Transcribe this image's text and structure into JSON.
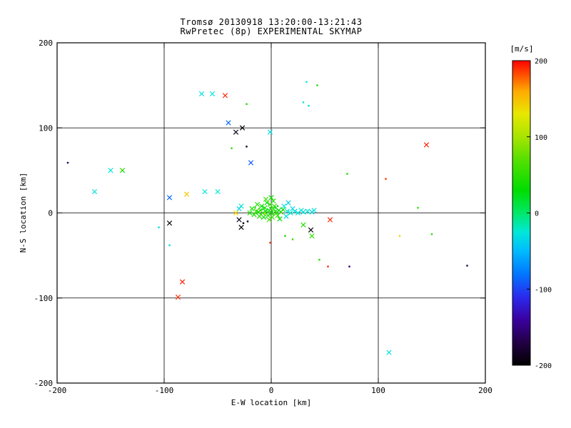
{
  "title": {
    "line1": "Tromsø 20130918 13:20:00-13:21:43",
    "line2": "RwPretec (8p) EXPERIMENTAL SKYMAP"
  },
  "chart_data": {
    "type": "scatter",
    "title": "Tromsø 20130918 13:20:00-13:21:43",
    "subtitle": "RwPretec (8p) EXPERIMENTAL SKYMAP",
    "xlabel": "E-W location [km]",
    "ylabel": "N-S location [km]",
    "xlim": [
      -200,
      200
    ],
    "ylim": [
      -200,
      200
    ],
    "x_ticks": [
      -200,
      -100,
      0,
      100,
      200
    ],
    "y_ticks": [
      200,
      100,
      0,
      -100,
      -200
    ],
    "grid": true,
    "colorbar": {
      "label": "[m/s]",
      "min": -200,
      "max": 200,
      "ticks": [
        200,
        100,
        0,
        -100,
        -200
      ],
      "stops": [
        [
          -200,
          "#000000"
        ],
        [
          -170,
          "#220044"
        ],
        [
          -140,
          "#3b00a0"
        ],
        [
          -110,
          "#2a2aee"
        ],
        [
          -80,
          "#0077ff"
        ],
        [
          -50,
          "#00bbff"
        ],
        [
          -25,
          "#00e8d8"
        ],
        [
          0,
          "#00e868"
        ],
        [
          30,
          "#00dd00"
        ],
        [
          70,
          "#55e000"
        ],
        [
          100,
          "#a8e400"
        ],
        [
          130,
          "#e8e800"
        ],
        [
          160,
          "#ffaa00"
        ],
        [
          180,
          "#ff5500"
        ],
        [
          200,
          "#ff0000"
        ]
      ]
    },
    "points_format": [
      "x_km",
      "y_km",
      "velocity_mps",
      "marker(x=cross,d=dot)"
    ],
    "points": [
      [
        -2,
        3,
        40,
        "x"
      ],
      [
        0,
        0,
        35,
        "x"
      ],
      [
        2,
        5,
        50,
        "x"
      ],
      [
        -5,
        2,
        30,
        "x"
      ],
      [
        -8,
        0,
        45,
        "x"
      ],
      [
        -3,
        -3,
        38,
        "x"
      ],
      [
        1,
        -5,
        55,
        "x"
      ],
      [
        4,
        2,
        42,
        "x"
      ],
      [
        -6,
        6,
        33,
        "x"
      ],
      [
        -10,
        3,
        60,
        "x"
      ],
      [
        -12,
        1,
        28,
        "x"
      ],
      [
        3,
        8,
        47,
        "x"
      ],
      [
        -1,
        10,
        52,
        "x"
      ],
      [
        -4,
        12,
        36,
        "x"
      ],
      [
        2,
        14,
        44,
        "x"
      ],
      [
        -7,
        -5,
        31,
        "x"
      ],
      [
        -14,
        2,
        58,
        "x"
      ],
      [
        -16,
        -2,
        41,
        "x"
      ],
      [
        5,
        0,
        49,
        "x"
      ],
      [
        7,
        3,
        26,
        "x"
      ],
      [
        -2,
        -8,
        63,
        "x"
      ],
      [
        -18,
        5,
        37,
        "x"
      ],
      [
        6,
        -3,
        54,
        "x"
      ],
      [
        -9,
        8,
        29,
        "x"
      ],
      [
        -11,
        -4,
        46,
        "x"
      ],
      [
        0,
        18,
        34,
        "x"
      ],
      [
        -5,
        16,
        57,
        "x"
      ],
      [
        -20,
        0,
        43,
        "x"
      ],
      [
        9,
        1,
        51,
        "x"
      ],
      [
        11,
        4,
        39,
        "x"
      ],
      [
        -13,
        10,
        48,
        "x"
      ],
      [
        8,
        -7,
        32,
        "x"
      ],
      [
        -3,
        1,
        45,
        "d"
      ],
      [
        1,
        2,
        38,
        "d"
      ],
      [
        -6,
        -2,
        52,
        "d"
      ],
      [
        4,
        6,
        30,
        "d"
      ],
      [
        -9,
        4,
        41,
        "d"
      ],
      [
        2,
        -2,
        56,
        "d"
      ],
      [
        -1,
        6,
        35,
        "d"
      ],
      [
        -15,
        6,
        44,
        "d"
      ],
      [
        6,
        8,
        27,
        "d"
      ],
      [
        12,
        8,
        -25,
        "x"
      ],
      [
        15,
        2,
        -30,
        "x"
      ],
      [
        18,
        0,
        -20,
        "x"
      ],
      [
        20,
        5,
        -35,
        "x"
      ],
      [
        22,
        2,
        -28,
        "x"
      ],
      [
        -28,
        8,
        -22,
        "x"
      ],
      [
        14,
        -4,
        -32,
        "x"
      ],
      [
        25,
        0,
        -26,
        "x"
      ],
      [
        16,
        12,
        -38,
        "x"
      ],
      [
        28,
        3,
        -24,
        "x"
      ],
      [
        30,
        1,
        -29,
        "x"
      ],
      [
        -30,
        5,
        -33,
        "x"
      ],
      [
        34,
        2,
        -27,
        "x"
      ],
      [
        38,
        1,
        -31,
        "x"
      ],
      [
        -33,
        0,
        140,
        "x"
      ],
      [
        -6,
        -1,
        125,
        "d"
      ],
      [
        -26,
        -12,
        -195,
        "d"
      ],
      [
        -30,
        -8,
        -190,
        "x"
      ],
      [
        -22,
        -10,
        -185,
        "d"
      ],
      [
        40,
        3,
        -30,
        "x"
      ],
      [
        55,
        -8,
        192,
        "x"
      ],
      [
        30,
        -14,
        45,
        "x"
      ],
      [
        38,
        -27,
        50,
        "x"
      ],
      [
        37,
        -20,
        -195,
        "x"
      ],
      [
        13,
        -27,
        40,
        "d"
      ],
      [
        20,
        -31,
        55,
        "d"
      ],
      [
        -1,
        -35,
        188,
        "d"
      ],
      [
        -28,
        -17,
        -195,
        "x"
      ],
      [
        -95,
        -12,
        -195,
        "x"
      ],
      [
        -105,
        -17,
        -30,
        "d"
      ],
      [
        -95,
        18,
        -85,
        "x"
      ],
      [
        -79,
        22,
        145,
        "x"
      ],
      [
        -62,
        25,
        -28,
        "x"
      ],
      [
        -50,
        25,
        -24,
        "x"
      ],
      [
        -165,
        25,
        -30,
        "x"
      ],
      [
        -150,
        50,
        -27,
        "x"
      ],
      [
        -139,
        50,
        45,
        "x"
      ],
      [
        -190,
        59,
        -160,
        "d"
      ],
      [
        -19,
        59,
        -90,
        "x"
      ],
      [
        -1,
        95,
        -30,
        "x"
      ],
      [
        -40,
        106,
        -85,
        "x"
      ],
      [
        -27,
        100,
        -195,
        "x"
      ],
      [
        -33,
        95,
        -190,
        "x"
      ],
      [
        -23,
        78,
        -185,
        "d"
      ],
      [
        -37,
        76,
        50,
        "d"
      ],
      [
        145,
        80,
        192,
        "x"
      ],
      [
        71,
        46,
        45,
        "d"
      ],
      [
        107,
        40,
        188,
        "d"
      ],
      [
        137,
        6,
        50,
        "d"
      ],
      [
        120,
        -27,
        140,
        "d"
      ],
      [
        150,
        -25,
        45,
        "d"
      ],
      [
        45,
        -55,
        48,
        "d"
      ],
      [
        53,
        -63,
        190,
        "d"
      ],
      [
        73,
        -63,
        -160,
        "d"
      ],
      [
        183,
        -62,
        -170,
        "d"
      ],
      [
        -83,
        -81,
        193,
        "x"
      ],
      [
        -87,
        -99,
        189,
        "x"
      ],
      [
        110,
        -164,
        -30,
        "x"
      ],
      [
        -65,
        140,
        -30,
        "x"
      ],
      [
        -55,
        140,
        -25,
        "x"
      ],
      [
        -43,
        138,
        192,
        "x"
      ],
      [
        -23,
        128,
        45,
        "d"
      ],
      [
        30,
        130,
        -28,
        "d"
      ],
      [
        35,
        126,
        -32,
        "d"
      ],
      [
        33,
        154,
        -26,
        "d"
      ],
      [
        43,
        150,
        48,
        "d"
      ],
      [
        -95,
        -38,
        -30,
        "d"
      ]
    ]
  }
}
